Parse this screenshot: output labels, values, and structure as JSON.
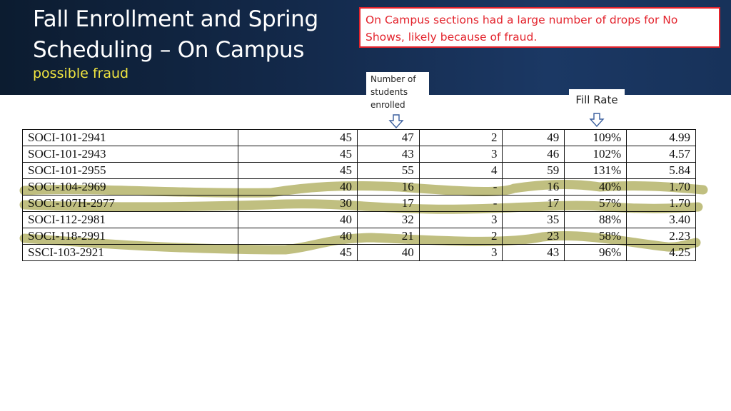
{
  "header": {
    "title_line1": "Fall Enrollment and Spring",
    "title_line2": "Scheduling – On Campus",
    "subtitle": "possible fraud"
  },
  "callout": {
    "text": "On Campus sections had a large number of drops for No Shows, likely because of fraud."
  },
  "annotations": {
    "enrolled_note": [
      "Number of",
      "students",
      "enrolled"
    ],
    "fill_rate_note": "Fill Rate"
  },
  "colors": {
    "header_bg": "#13294a",
    "callout_red": "#e3232c",
    "subtitle_yellow": "#f2e640",
    "highlight": "#b5b46a"
  },
  "table": {
    "rows": [
      {
        "course": "SOCI-101-2941",
        "cap": "45",
        "enrolled": "47",
        "drops": "2",
        "total": "49",
        "fill_rate": "109%",
        "last": "4.99",
        "highlighted": false
      },
      {
        "course": "SOCI-101-2943",
        "cap": "45",
        "enrolled": "43",
        "drops": "3",
        "total": "46",
        "fill_rate": "102%",
        "last": "4.57",
        "highlighted": false
      },
      {
        "course": "SOCI-101-2955",
        "cap": "45",
        "enrolled": "55",
        "drops": "4",
        "total": "59",
        "fill_rate": "131%",
        "last": "5.84",
        "highlighted": false
      },
      {
        "course": "SOCI-104-2969",
        "cap": "40",
        "enrolled": "16",
        "drops": "-",
        "total": "16",
        "fill_rate": "40%",
        "last": "1.70",
        "highlighted": true
      },
      {
        "course": "SOCI-107H-2977",
        "cap": "30",
        "enrolled": "17",
        "drops": "-",
        "total": "17",
        "fill_rate": "57%",
        "last": "1.70",
        "highlighted": true
      },
      {
        "course": "SOCI-112-2981",
        "cap": "40",
        "enrolled": "32",
        "drops": "3",
        "total": "35",
        "fill_rate": "88%",
        "last": "3.40",
        "highlighted": false
      },
      {
        "course": "SOCI-118-2991",
        "cap": "40",
        "enrolled": "21",
        "drops": "2",
        "total": "23",
        "fill_rate": "58%",
        "last": "2.23",
        "highlighted": true
      },
      {
        "course": "SSCI-103-2921",
        "cap": "45",
        "enrolled": "40",
        "drops": "3",
        "total": "43",
        "fill_rate": "96%",
        "last": "4.25",
        "highlighted": false
      }
    ]
  }
}
